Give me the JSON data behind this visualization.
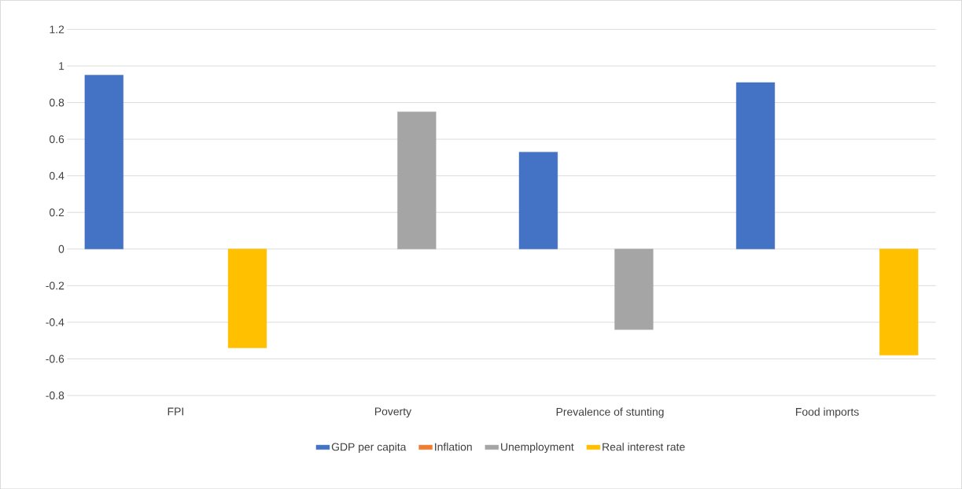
{
  "chart_data": {
    "type": "bar",
    "categories": [
      "FPI",
      "Poverty",
      "Prevalence of stunting",
      "Food imports"
    ],
    "series": [
      {
        "name": "GDP per capita",
        "color": "#4472c4",
        "values": [
          0.95,
          null,
          0.53,
          0.91
        ]
      },
      {
        "name": "Inflation",
        "color": "#ed7d31",
        "values": [
          null,
          null,
          null,
          null
        ]
      },
      {
        "name": "Unemployment",
        "color": "#a5a5a5",
        "values": [
          null,
          0.75,
          -0.44,
          null
        ]
      },
      {
        "name": "Real interest rate",
        "color": "#ffc000",
        "values": [
          -0.54,
          null,
          null,
          -0.58
        ]
      }
    ],
    "ylim": [
      -0.8,
      1.2
    ],
    "yticks": [
      -0.8,
      -0.6,
      -0.4,
      -0.2,
      0,
      0.2,
      0.4,
      0.6,
      0.8,
      1,
      1.2
    ],
    "grid": "y",
    "legend": "bottom"
  }
}
